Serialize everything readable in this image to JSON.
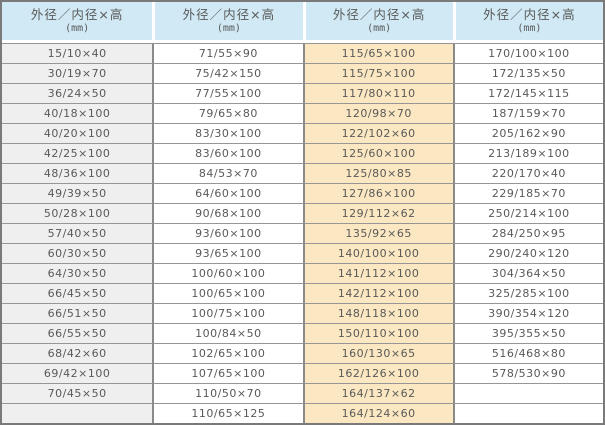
{
  "colors": {
    "header_bg": "#d0e9f4",
    "first_column_bg": "#efefef",
    "highlight_column_bg": "#fbe8c2",
    "body_bg": "#ffffff",
    "grid_horizontal": "#969696",
    "grid_vertical": "#8a8a8a",
    "outer_border": "#7a7a7a",
    "text": "#595959"
  },
  "chart_data": {
    "type": "table",
    "num_rows": 19,
    "num_columns": 4,
    "headers": [
      {
        "title": "外径／内径×高",
        "unit": "(mm)"
      },
      {
        "title": "外径／内径×高",
        "unit": "(mm)"
      },
      {
        "title": "外径／内径×高",
        "unit": "(mm)"
      },
      {
        "title": "外径／内径×高",
        "unit": "(mm)"
      }
    ],
    "columns": [
      {
        "highlight": false,
        "values": [
          "15/10×40",
          "30/19×70",
          "36/24×50",
          "40/18×100",
          "40/20×100",
          "42/25×100",
          "48/36×100",
          "49/39×50",
          "50/28×100",
          "57/40×50",
          "60/30×50",
          "64/30×50",
          "66/45×50",
          "66/51×50",
          "66/55×50",
          "68/42×60",
          "69/42×100",
          "70/45×50",
          ""
        ]
      },
      {
        "highlight": false,
        "values": [
          "71/55×90",
          "75/42×150",
          "77/55×100",
          "79/65×80",
          "83/30×100",
          "83/60×100",
          "84/53×70",
          "64/60×100",
          "90/68×100",
          "93/60×100",
          "93/65×100",
          "100/60×100",
          "100/65×100",
          "100/75×100",
          "100/84×50",
          "102/65×100",
          "107/65×100",
          "110/50×70",
          "110/65×125"
        ]
      },
      {
        "highlight": true,
        "values": [
          "115/65×100",
          "115/75×100",
          "117/80×110",
          "120/98×70",
          "122/102×60",
          "125/60×100",
          "125/80×85",
          "127/86×100",
          "129/112×62",
          "135/92×65",
          "140/100×100",
          "141/112×100",
          "142/112×100",
          "148/118×100",
          "150/110×100",
          "160/130×65",
          "162/126×100",
          "164/137×62",
          "164/124×60"
        ]
      },
      {
        "highlight": false,
        "values": [
          "170/100×100",
          "172/135×50",
          "172/145×115",
          "187/159×70",
          "205/162×90",
          "213/189×100",
          "220/170×40",
          "229/185×70",
          "250/214×100",
          "284/250×95",
          "290/240×120",
          "304/364×50",
          "325/285×100",
          "390/354×120",
          "395/355×50",
          "516/468×80",
          "578/530×90",
          "",
          ""
        ]
      }
    ]
  }
}
